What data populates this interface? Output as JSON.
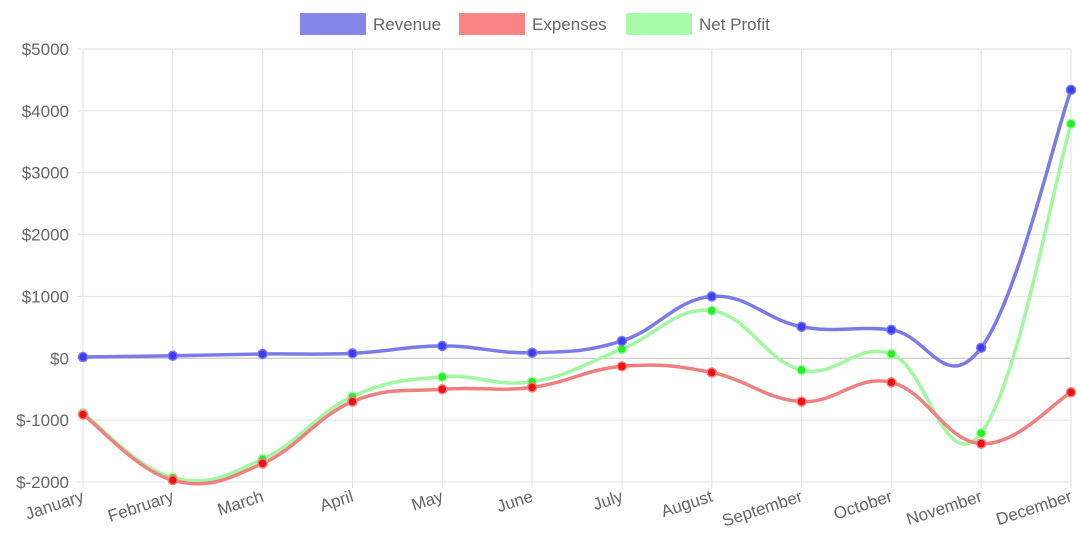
{
  "chart_data": {
    "type": "line",
    "categories": [
      "January",
      "February",
      "March",
      "April",
      "May",
      "June",
      "July",
      "August",
      "September",
      "October",
      "November",
      "December"
    ],
    "series": [
      {
        "name": "Revenue",
        "values": [
          20,
          40,
          70,
          80,
          200,
          90,
          280,
          1000,
          510,
          460,
          170,
          4340
        ],
        "line_color": "#7b7be8",
        "fill_color": "#8585ea",
        "point_color": "#3c3cf5"
      },
      {
        "name": "Expenses",
        "values": [
          -910,
          -1970,
          -1700,
          -700,
          -500,
          -470,
          -130,
          -230,
          -700,
          -390,
          -1380,
          -550
        ],
        "line_color": "#f08080",
        "fill_color": "#fb8585",
        "point_color": "#f01010"
      },
      {
        "name": "Net Profit",
        "values": [
          -890,
          -1930,
          -1630,
          -620,
          -300,
          -380,
          150,
          770,
          -190,
          70,
          -1210,
          3790
        ],
        "line_color": "#a2f7a2",
        "fill_color": "#a8fba8",
        "point_color": "#22ee22"
      }
    ],
    "y_ticks": [
      {
        "value": 5000,
        "label": "$5000"
      },
      {
        "value": 4000,
        "label": "$4000"
      },
      {
        "value": 3000,
        "label": "$3000"
      },
      {
        "value": 2000,
        "label": "$2000"
      },
      {
        "value": 1000,
        "label": "$1000"
      },
      {
        "value": 0,
        "label": "$0"
      },
      {
        "value": -1000,
        "label": "$-1000"
      },
      {
        "value": -2000,
        "label": "$-2000"
      }
    ],
    "ylim": [
      -2000,
      5000
    ],
    "grid": true,
    "legend_position": "top",
    "title": "",
    "xlabel": "",
    "ylabel": ""
  }
}
